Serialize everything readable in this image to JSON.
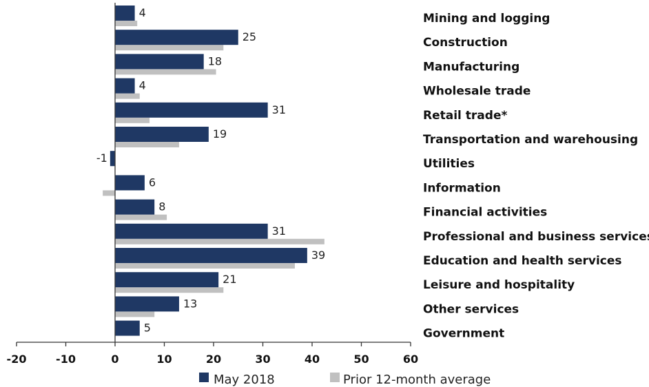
{
  "chart_data": {
    "type": "bar",
    "orientation": "horizontal",
    "categories": [
      "Mining and logging",
      "Construction",
      "Manufacturing",
      "Wholesale trade",
      "Retail trade*",
      "Transportation and warehousing",
      "Utilities",
      "Information",
      "Financial activities",
      "Professional and business services",
      "Education and health services",
      "Leisure and hospitality",
      "Other services",
      "Government"
    ],
    "series": [
      {
        "name": "May 2018",
        "color": "#1f3864",
        "values": [
          4,
          25,
          18,
          4,
          31,
          19,
          -1,
          6,
          8,
          31,
          39,
          21,
          13,
          5
        ],
        "labels": [
          "4",
          "25",
          "18",
          "4",
          "31",
          "19",
          "-1",
          "6",
          "8",
          "31",
          "39",
          "21",
          "13",
          "5"
        ]
      },
      {
        "name": "Prior 12-month average",
        "color": "#c0c0c0",
        "values": [
          4.5,
          22,
          20.5,
          5,
          7,
          13,
          0,
          -2.5,
          10.5,
          42.5,
          36.5,
          22,
          8,
          null
        ]
      }
    ],
    "xlim": [
      -20,
      60
    ],
    "xticks": [
      "-20",
      "-10",
      "0",
      "10",
      "20",
      "30",
      "40",
      "50",
      "60"
    ],
    "title": "",
    "xlabel": "",
    "ylabel": "",
    "legend_position": "bottom"
  }
}
